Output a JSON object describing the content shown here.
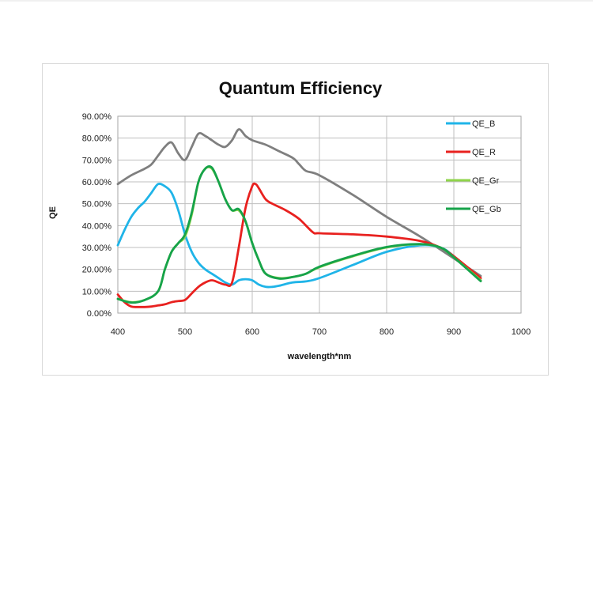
{
  "chart_data": {
    "type": "line",
    "title": "Quantum Efficiency",
    "xlabel": "wavelength*nm",
    "ylabel": "QE",
    "xlim": [
      400,
      1000
    ],
    "ylim": [
      0,
      0.9
    ],
    "x_ticks": [
      400,
      500,
      600,
      700,
      800,
      900,
      1000
    ],
    "x_tick_labels": [
      "400",
      "500",
      "600",
      "700",
      "800",
      "900",
      "1000"
    ],
    "y_ticks": [
      0,
      0.1,
      0.2,
      0.3,
      0.4,
      0.5,
      0.6,
      0.7,
      0.8,
      0.9
    ],
    "y_tick_labels": [
      "0.00%",
      "10.00%",
      "20.00%",
      "30.00%",
      "40.00%",
      "50.00%",
      "60.00%",
      "70.00%",
      "80.00%",
      "90.00%"
    ],
    "grid": true,
    "legend": "right",
    "series": [
      {
        "name": "QE_B",
        "color": "#1fb4e8",
        "x": [
          400,
          410,
          420,
          430,
          440,
          450,
          460,
          470,
          480,
          490,
          500,
          510,
          520,
          530,
          540,
          550,
          560,
          570,
          580,
          590,
          600,
          610,
          620,
          630,
          640,
          660,
          680,
          700,
          750,
          800,
          850,
          880,
          900,
          940
        ],
        "y": [
          0.31,
          0.38,
          0.44,
          0.48,
          0.51,
          0.55,
          0.59,
          0.58,
          0.55,
          0.47,
          0.36,
          0.28,
          0.23,
          0.2,
          0.18,
          0.16,
          0.14,
          0.13,
          0.15,
          0.155,
          0.15,
          0.13,
          0.12,
          0.12,
          0.125,
          0.14,
          0.145,
          0.16,
          0.22,
          0.28,
          0.31,
          0.3,
          0.26,
          0.15
        ]
      },
      {
        "name": "QE_R",
        "color": "#e8211f",
        "x": [
          400,
          410,
          420,
          430,
          440,
          450,
          460,
          470,
          480,
          490,
          500,
          510,
          520,
          530,
          540,
          550,
          560,
          570,
          580,
          590,
          600,
          605,
          610,
          620,
          630,
          650,
          670,
          690,
          700,
          750,
          800,
          850,
          880,
          900,
          940
        ],
        "y": [
          0.085,
          0.05,
          0.03,
          0.028,
          0.028,
          0.03,
          0.035,
          0.04,
          0.05,
          0.055,
          0.06,
          0.09,
          0.12,
          0.14,
          0.15,
          0.14,
          0.13,
          0.14,
          0.3,
          0.48,
          0.58,
          0.59,
          0.57,
          0.52,
          0.5,
          0.47,
          0.43,
          0.37,
          0.365,
          0.36,
          0.35,
          0.33,
          0.3,
          0.26,
          0.16
        ]
      },
      {
        "name": "QE_Gr",
        "color": "#8fd44a",
        "x": [
          400,
          420,
          440,
          460,
          470,
          480,
          490,
          500,
          510,
          520,
          530,
          540,
          550,
          560,
          570,
          580,
          590,
          600,
          610,
          620,
          640,
          660,
          680,
          700,
          750,
          800,
          850,
          880,
          900,
          940
        ],
        "y": [
          0.065,
          0.05,
          0.06,
          0.1,
          0.2,
          0.28,
          0.32,
          0.35,
          0.45,
          0.6,
          0.66,
          0.66,
          0.6,
          0.52,
          0.47,
          0.47,
          0.42,
          0.32,
          0.24,
          0.18,
          0.16,
          0.165,
          0.18,
          0.21,
          0.26,
          0.3,
          0.315,
          0.3,
          0.255,
          0.15
        ]
      },
      {
        "name": "QE_Gb",
        "color": "#16a34a",
        "x": [
          400,
          420,
          440,
          460,
          470,
          480,
          490,
          500,
          510,
          520,
          530,
          540,
          550,
          560,
          570,
          580,
          590,
          600,
          610,
          620,
          640,
          660,
          680,
          700,
          750,
          800,
          850,
          880,
          900,
          940
        ],
        "y": [
          0.065,
          0.048,
          0.06,
          0.1,
          0.2,
          0.28,
          0.32,
          0.36,
          0.46,
          0.6,
          0.66,
          0.665,
          0.6,
          0.52,
          0.47,
          0.475,
          0.42,
          0.32,
          0.24,
          0.18,
          0.158,
          0.165,
          0.18,
          0.212,
          0.262,
          0.302,
          0.316,
          0.3,
          0.255,
          0.146
        ]
      },
      {
        "name": "",
        "color": "#7f7f7f",
        "x": [
          400,
          420,
          440,
          450,
          460,
          470,
          480,
          490,
          500,
          510,
          520,
          530,
          540,
          550,
          560,
          570,
          580,
          590,
          600,
          620,
          640,
          660,
          670,
          680,
          700,
          750,
          800,
          850,
          900,
          940
        ],
        "y": [
          0.59,
          0.63,
          0.66,
          0.68,
          0.72,
          0.76,
          0.78,
          0.73,
          0.7,
          0.76,
          0.82,
          0.81,
          0.79,
          0.77,
          0.76,
          0.79,
          0.84,
          0.81,
          0.79,
          0.77,
          0.74,
          0.71,
          0.68,
          0.65,
          0.63,
          0.54,
          0.44,
          0.35,
          0.25,
          0.17
        ]
      }
    ]
  }
}
